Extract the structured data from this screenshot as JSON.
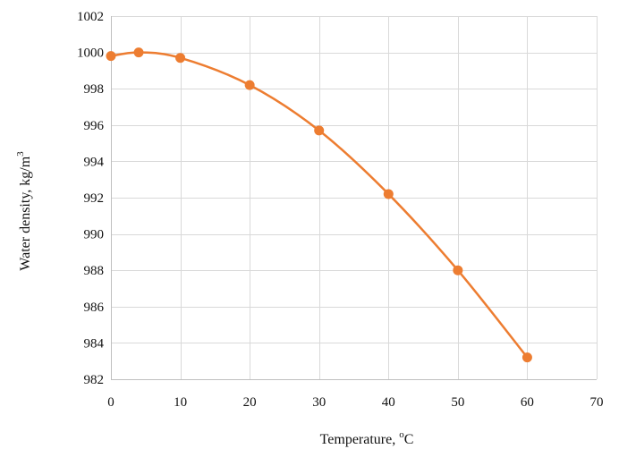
{
  "chart_data": {
    "type": "line",
    "title": "",
    "xlabel": "Temperature, °C",
    "ylabel": "Water density, kg/m3",
    "xlim": [
      0,
      70
    ],
    "ylim": [
      982,
      1002
    ],
    "x_ticks": [
      0,
      10,
      20,
      30,
      40,
      50,
      60,
      70
    ],
    "y_ticks": [
      982,
      984,
      986,
      988,
      990,
      992,
      994,
      996,
      998,
      1000,
      1002
    ],
    "grid": true,
    "smooth": true,
    "color": "#ed7d31",
    "series": [
      {
        "x": [
          0,
          4,
          10,
          20,
          30,
          40,
          50,
          60
        ],
        "y": [
          999.8,
          1000.0,
          999.7,
          998.2,
          995.7,
          992.2,
          988.0,
          983.2
        ]
      }
    ]
  },
  "labels": {
    "xlabel_main": "Temperature, ",
    "xlabel_sup": "o",
    "xlabel_unit": "C",
    "ylabel_main": "Water density, kg/m",
    "ylabel_sup": "3"
  }
}
